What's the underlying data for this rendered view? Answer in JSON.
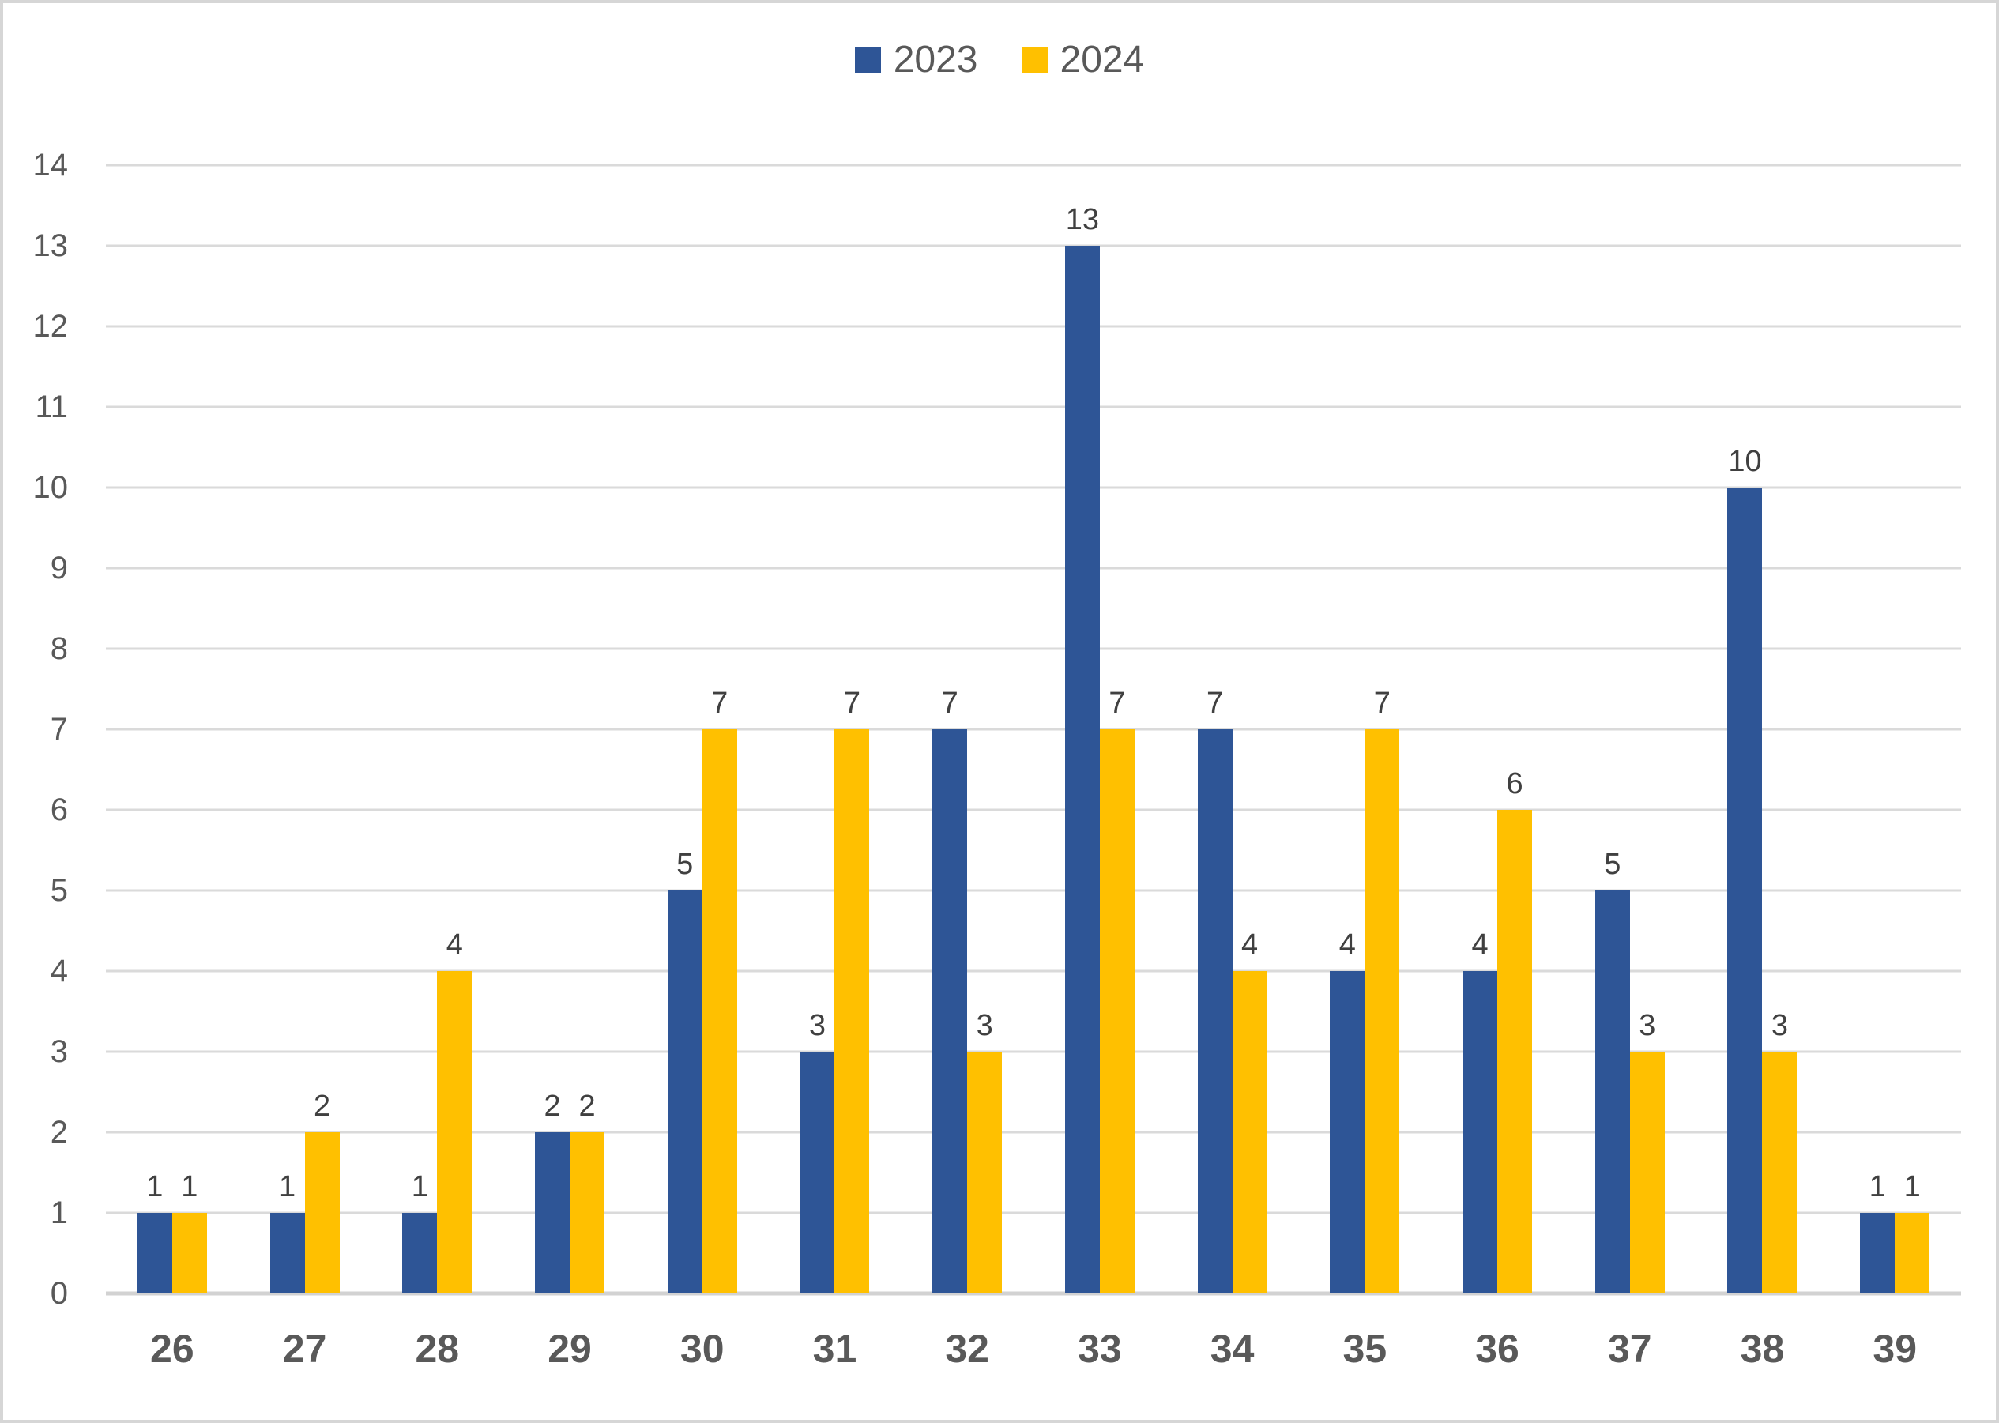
{
  "chart_data": {
    "type": "bar",
    "title": "",
    "xlabel": "",
    "ylabel": "",
    "categories": [
      "26",
      "27",
      "28",
      "29",
      "30",
      "31",
      "32",
      "33",
      "34",
      "35",
      "36",
      "37",
      "38",
      "39"
    ],
    "series": [
      {
        "name": "2023",
        "color": "#2E5596",
        "values": [
          1,
          1,
          1,
          2,
          5,
          3,
          7,
          13,
          7,
          4,
          4,
          5,
          10,
          1
        ]
      },
      {
        "name": "2024",
        "color": "#FFC000",
        "values": [
          1,
          2,
          4,
          2,
          7,
          7,
          3,
          7,
          4,
          7,
          6,
          3,
          3,
          1
        ]
      }
    ],
    "ylim": [
      0,
      14
    ],
    "yticks": [
      0,
      1,
      2,
      3,
      4,
      5,
      6,
      7,
      8,
      9,
      10,
      11,
      12,
      13,
      14
    ],
    "grid": "horizontal-gridlines",
    "legend_position": "top-center",
    "data_labels": true
  },
  "colors": {
    "series_2023": "#2E5596",
    "series_2024": "#FFC000",
    "gridline": "#DADADA",
    "baseline": "#D2D2D2",
    "axis_text": "#595959",
    "data_label_text": "#404040",
    "frame_border": "#D6D6D6",
    "background": "#FFFFFF"
  }
}
